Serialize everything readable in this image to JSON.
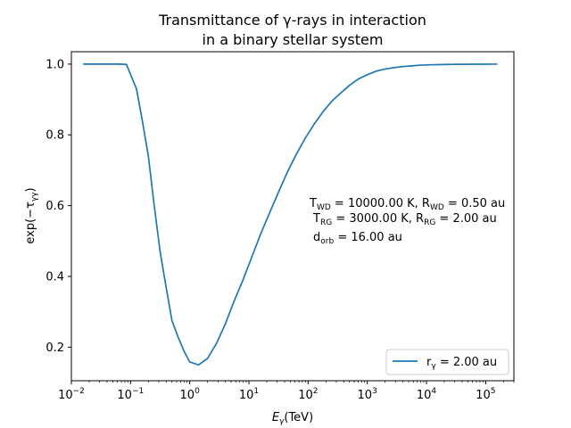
{
  "chart_data": {
    "type": "line",
    "title_line1": "Transmittance of γ-rays in interaction",
    "title_line2": "in a binary stellar system",
    "xlabel_main": "E",
    "xlabel_sub": "γ",
    "xlabel_unit": "(TeV)",
    "ylabel": "exp(−τγγ)",
    "x_scale": "log",
    "xlim": [
      0.01,
      300000
    ],
    "ylim": [
      0.105,
      1.035
    ],
    "xtick_exponents": [
      "-2",
      "-1",
      "0",
      "1",
      "2",
      "3",
      "4",
      "5"
    ],
    "xtick_base": "10",
    "yticks": [
      0.2,
      0.4,
      0.6,
      0.8,
      1.0
    ],
    "ytick_labels": [
      "0.2",
      "0.4",
      "0.6",
      "0.8",
      "1.0"
    ],
    "grid": false,
    "legend_position": "lower-right",
    "series": [
      {
        "name": "rγ = 2.00 au",
        "color": "#1f77b4",
        "x": [
          0.0158,
          0.025,
          0.0398,
          0.0631,
          0.0851,
          0.126,
          0.158,
          0.2,
          0.251,
          0.316,
          0.398,
          0.501,
          0.631,
          0.794,
          1.0,
          1.41,
          2.0,
          2.82,
          3.98,
          5.62,
          7.94,
          11.2,
          15.8,
          22.4,
          31.6,
          44.7,
          63.1,
          89.1,
          126,
          178,
          251,
          355,
          501,
          708,
          1000,
          1410,
          2000,
          2820,
          3980,
          5620,
          7940,
          11200,
          15800,
          22400,
          31600,
          44700,
          63100,
          89100,
          126000,
          158000
        ],
        "y": [
          1.0,
          1.0,
          1.0,
          1.0,
          0.999,
          0.93,
          0.84,
          0.74,
          0.6,
          0.47,
          0.37,
          0.275,
          0.23,
          0.19,
          0.158,
          0.15,
          0.168,
          0.21,
          0.265,
          0.33,
          0.39,
          0.455,
          0.52,
          0.58,
          0.638,
          0.695,
          0.745,
          0.79,
          0.83,
          0.865,
          0.895,
          0.918,
          0.94,
          0.958,
          0.97,
          0.98,
          0.986,
          0.99,
          0.993,
          0.995,
          0.997,
          0.998,
          0.9985,
          0.999,
          0.9993,
          0.9995,
          0.9997,
          0.9998,
          0.9999,
          0.9999
        ]
      }
    ],
    "annotation": {
      "line1": {
        "a": "T",
        "a_sub": "WD",
        "b": " = 10000.00 K, R",
        "b_sub": "WD",
        "c": " = 0.50 au"
      },
      "line2": {
        "a": "T",
        "a_sub": "RG",
        "b": " = 3000.00 K, R",
        "b_sub": "RG",
        "c": " =  2.00 au"
      },
      "line3": {
        "a": "d",
        "a_sub": "orb",
        "b": " = 16.00 au"
      }
    }
  }
}
